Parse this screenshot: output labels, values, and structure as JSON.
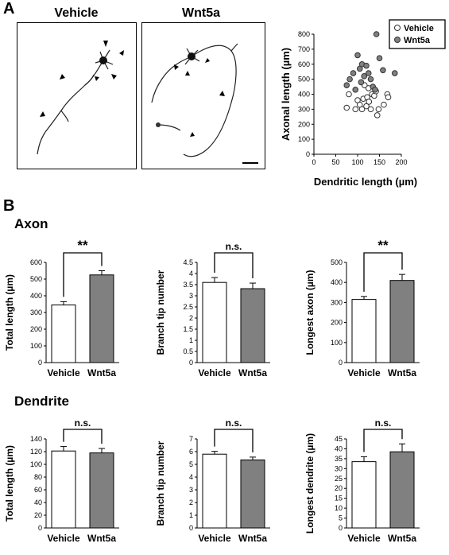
{
  "panel_a_label": "A",
  "panel_b_label": "B",
  "images": [
    {
      "title": "Vehicle"
    },
    {
      "title": "Wnt5a"
    }
  ],
  "sections": {
    "axon": "Axon",
    "dendrite": "Dendrite"
  },
  "colors": {
    "vehicle_fill": "#ffffff",
    "wnt5a_fill": "#808080",
    "stroke": "#000000"
  },
  "chart_data": [
    {
      "id": "scatter",
      "type": "scatter",
      "xlabel": "Dendritic length (µm)",
      "ylabel": "Axonal length (µm)",
      "xlim": [
        0,
        200
      ],
      "ylim": [
        0,
        800
      ],
      "xticks": [
        0,
        50,
        100,
        150,
        200
      ],
      "yticks": [
        0,
        100,
        200,
        300,
        400,
        500,
        600,
        700,
        800
      ],
      "legend_position": "top-right",
      "series": [
        {
          "name": "Vehicle",
          "points": [
            [
              75,
              310
            ],
            [
              80,
              400
            ],
            [
              95,
              300
            ],
            [
              100,
              360
            ],
            [
              105,
              330
            ],
            [
              110,
              300
            ],
            [
              113,
              370
            ],
            [
              116,
              460
            ],
            [
              120,
              320
            ],
            [
              122,
              380
            ],
            [
              126,
              350
            ],
            [
              130,
              300
            ],
            [
              133,
              400
            ],
            [
              138,
              390
            ],
            [
              142,
              420
            ],
            [
              145,
              260
            ],
            [
              148,
              300
            ],
            [
              160,
              330
            ],
            [
              168,
              400
            ],
            [
              170,
              380
            ],
            [
              125,
              440
            ]
          ]
        },
        {
          "name": "Wnt5a",
          "points": [
            [
              75,
              460
            ],
            [
              82,
              500
            ],
            [
              90,
              540
            ],
            [
              95,
              430
            ],
            [
              100,
              660
            ],
            [
              105,
              570
            ],
            [
              110,
              600
            ],
            [
              115,
              520
            ],
            [
              120,
              590
            ],
            [
              125,
              540
            ],
            [
              130,
              500
            ],
            [
              135,
              450
            ],
            [
              140,
              430
            ],
            [
              143,
              800
            ],
            [
              150,
              640
            ],
            [
              158,
              560
            ],
            [
              185,
              540
            ],
            [
              108,
              480
            ]
          ]
        }
      ]
    },
    {
      "id": "axon-total",
      "type": "bar",
      "ylabel": "Total length (µm)",
      "categories": [
        "Vehicle",
        "Wnt5a"
      ],
      "values": [
        345,
        525
      ],
      "errors": [
        20,
        25
      ],
      "ylim": [
        0,
        600
      ],
      "yticks": [
        0,
        100,
        200,
        300,
        400,
        500,
        600
      ],
      "significance": "**"
    },
    {
      "id": "axon-branch",
      "type": "bar",
      "ylabel": "Branch tip number",
      "categories": [
        "Vehicle",
        "Wnt5a"
      ],
      "values": [
        3.6,
        3.32
      ],
      "errors": [
        0.22,
        0.25
      ],
      "ylim": [
        0,
        4.5
      ],
      "yticks": [
        0,
        0.5,
        1,
        1.5,
        2,
        2.5,
        3,
        3.5,
        4,
        4.5
      ],
      "significance": "n.s."
    },
    {
      "id": "axon-longest",
      "type": "bar",
      "ylabel": "Longest axon (µm)",
      "categories": [
        "Vehicle",
        "Wnt5a"
      ],
      "values": [
        315,
        410
      ],
      "errors": [
        15,
        30
      ],
      "ylim": [
        0,
        500
      ],
      "yticks": [
        0,
        100,
        200,
        300,
        400,
        500
      ],
      "significance": "**"
    },
    {
      "id": "dend-total",
      "type": "bar",
      "ylabel": "Total length (µm)",
      "categories": [
        "Vehicle",
        "Wnt5a"
      ],
      "values": [
        121,
        118
      ],
      "errors": [
        7,
        7
      ],
      "ylim": [
        0,
        140
      ],
      "yticks": [
        0,
        20,
        40,
        60,
        80,
        100,
        120,
        140
      ],
      "significance": "n.s."
    },
    {
      "id": "dend-branch",
      "type": "bar",
      "ylabel": "Branch tip number",
      "categories": [
        "Vehicle",
        "Wnt5a"
      ],
      "values": [
        5.8,
        5.35
      ],
      "errors": [
        0.22,
        0.22
      ],
      "ylim": [
        0,
        7
      ],
      "yticks": [
        0,
        1,
        2,
        3,
        4,
        5,
        6,
        7
      ],
      "significance": "n.s."
    },
    {
      "id": "dend-longest",
      "type": "bar",
      "ylabel": "Longest dendrite (µm)",
      "categories": [
        "Vehicle",
        "Wnt5a"
      ],
      "values": [
        33.5,
        38.5
      ],
      "errors": [
        2.5,
        4
      ],
      "ylim": [
        0,
        45
      ],
      "yticks": [
        0,
        5,
        10,
        15,
        20,
        25,
        30,
        35,
        40,
        45
      ],
      "significance": "n.s."
    }
  ]
}
